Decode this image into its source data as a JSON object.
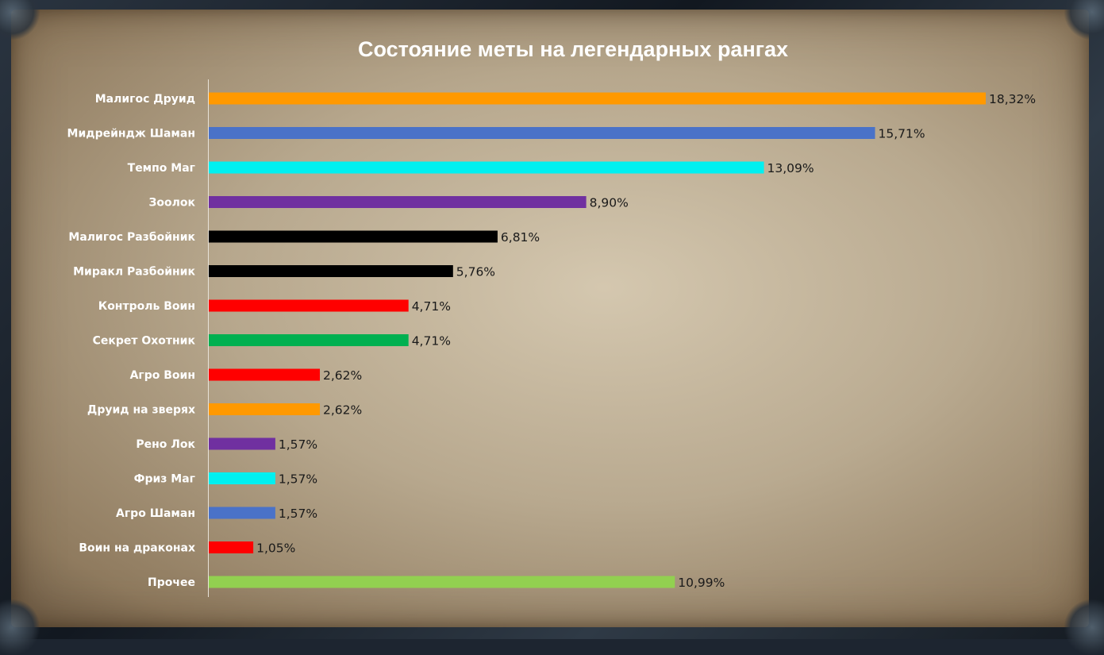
{
  "chart_data": {
    "type": "bar",
    "orientation": "horizontal",
    "title": "Состояние меты на легендарных рангах",
    "xlabel": "",
    "ylabel": "",
    "xlim": [
      0,
      18.32
    ],
    "grid": false,
    "legend": "none",
    "categories": [
      "Малигос Друид",
      "Мидрейндж Шаман",
      "Темпо Маг",
      "Зоолок",
      "Малигос Разбойник",
      "Миракл Разбойник",
      "Контроль Воин",
      "Секрет Охотник",
      "Агро Воин",
      "Друид на зверях",
      "Рено Лок",
      "Фриз Маг",
      "Агро Шаман",
      "Воин на драконах",
      "Прочее"
    ],
    "values": [
      18.32,
      15.71,
      13.09,
      8.9,
      6.81,
      5.76,
      4.71,
      4.71,
      2.62,
      2.62,
      1.57,
      1.57,
      1.57,
      1.05,
      10.99
    ],
    "value_labels": [
      "18,32%",
      "15,71%",
      "13,09%",
      "8,90%",
      "6,81%",
      "5,76%",
      "4,71%",
      "4,71%",
      "2,62%",
      "2,62%",
      "1,57%",
      "1,57%",
      "1,57%",
      "1,05%",
      "10,99%"
    ],
    "colors": [
      "#ff9900",
      "#4a72c8",
      "#00f0f0",
      "#7030a0",
      "#000000",
      "#000000",
      "#ff0000",
      "#00b050",
      "#ff0000",
      "#ff9900",
      "#7030a0",
      "#00f0f0",
      "#4a72c8",
      "#ff0000",
      "#92d050"
    ]
  }
}
